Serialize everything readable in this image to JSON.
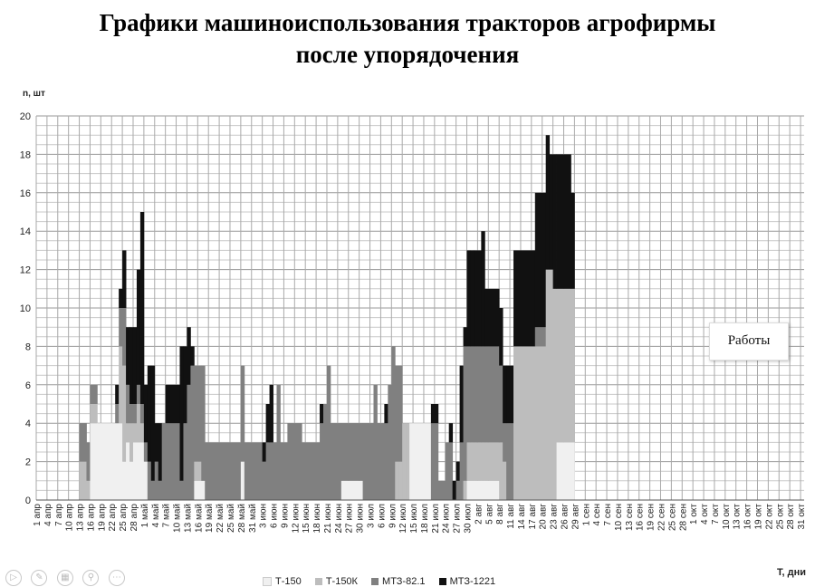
{
  "title_line1": "Графики машиноиспользования тракторов агрофирмы",
  "title_line2": "после упорядочения",
  "annotation": "Работы",
  "toolbar_icons": [
    "play-icon",
    "pen-icon",
    "slides-icon",
    "zoom-icon",
    "more-icon"
  ],
  "chart_data": {
    "type": "bar",
    "stacked": true,
    "ylabel": "n, шт",
    "xlabel": "T, дни",
    "ylim": [
      0,
      20
    ],
    "yticks": [
      0,
      2,
      4,
      6,
      8,
      10,
      12,
      14,
      16,
      18,
      20
    ],
    "grid": true,
    "legend_position": "bottom",
    "tick_labels": [
      "1 апр",
      "4 апр",
      "7 апр",
      "10 апр",
      "13 апр",
      "16 апр",
      "19 апр",
      "22 апр",
      "25 апр",
      "28 апр",
      "1 май",
      "4 май",
      "7 май",
      "10 май",
      "13 май",
      "16 май",
      "19 май",
      "22 май",
      "25 май",
      "28 май",
      "31 май",
      "3 июн",
      "6 июн",
      "9 июн",
      "12 июн",
      "15 июн",
      "18 июн",
      "21 июн",
      "24 июн",
      "27 июн",
      "30 июн",
      "3 июл",
      "6 июл",
      "9 июл",
      "12 июл",
      "15 июл",
      "18 июл",
      "21 июл",
      "24 июл",
      "27 июл",
      "30 июл",
      "2 авг",
      "5 авг",
      "8 авг",
      "11 авг",
      "14 авг",
      "17 авг",
      "20 авг",
      "23 авг",
      "26 авг",
      "29 авг",
      "1 сен",
      "4 сен",
      "7 сен",
      "10 сен",
      "13 сен",
      "16 сен",
      "19 сен",
      "22 сен",
      "25 сен",
      "28 сен",
      "1 окт",
      "4 окт",
      "7 окт",
      "10 окт",
      "13 окт",
      "16 окт",
      "19 окт",
      "22 окт",
      "25 окт",
      "28 окт",
      "31 окт"
    ],
    "categories_note": "daily from 1 апр to 31 окт; segments below give approximate stacked values per day range (start index, end index inclusive, day 0 = 1 апр)",
    "series": [
      {
        "name": "Т-150",
        "color": "#f0f0f0"
      },
      {
        "name": "Т-150К",
        "color": "#bdbdbd"
      },
      {
        "name": "МТЗ-82.1",
        "color": "#808080"
      },
      {
        "name": "МТЗ-1221",
        "color": "#111111"
      }
    ],
    "segments": [
      {
        "d": [
          12,
          13
        ],
        "v": [
          0,
          2,
          2,
          0
        ]
      },
      {
        "d": [
          14,
          14
        ],
        "v": [
          0,
          1,
          2,
          0
        ]
      },
      {
        "d": [
          15,
          16
        ],
        "v": [
          4,
          1,
          1,
          0
        ]
      },
      {
        "d": [
          17,
          20
        ],
        "v": [
          4,
          0,
          0,
          0
        ]
      },
      {
        "d": [
          21,
          21
        ],
        "v": [
          4,
          0,
          0,
          0
        ]
      },
      {
        "d": [
          22,
          22
        ],
        "v": [
          4,
          0,
          1,
          1
        ]
      },
      {
        "d": [
          23,
          23
        ],
        "v": [
          4,
          4,
          2,
          1
        ]
      },
      {
        "d": [
          24,
          24
        ],
        "v": [
          2,
          5,
          3,
          3
        ]
      },
      {
        "d": [
          25,
          25
        ],
        "v": [
          3,
          1,
          2,
          3
        ]
      },
      {
        "d": [
          26,
          26
        ],
        "v": [
          2,
          2,
          1,
          4
        ]
      },
      {
        "d": [
          27,
          27
        ],
        "v": [
          3,
          1,
          1,
          4
        ]
      },
      {
        "d": [
          28,
          28
        ],
        "v": [
          3,
          2,
          1,
          6
        ]
      },
      {
        "d": [
          29,
          29
        ],
        "v": [
          3,
          1,
          1,
          10
        ]
      },
      {
        "d": [
          30,
          30
        ],
        "v": [
          2,
          0,
          1,
          3
        ]
      },
      {
        "d": [
          31,
          31
        ],
        "v": [
          0,
          0,
          2,
          5
        ]
      },
      {
        "d": [
          32,
          32
        ],
        "v": [
          0,
          0,
          1,
          6
        ]
      },
      {
        "d": [
          33,
          33
        ],
        "v": [
          0,
          0,
          2,
          2
        ]
      },
      {
        "d": [
          34,
          34
        ],
        "v": [
          0,
          0,
          1,
          3
        ]
      },
      {
        "d": [
          35,
          35
        ],
        "v": [
          0,
          0,
          4,
          0
        ]
      },
      {
        "d": [
          36,
          39
        ],
        "v": [
          0,
          0,
          4,
          2
        ]
      },
      {
        "d": [
          40,
          40
        ],
        "v": [
          0,
          0,
          1,
          7
        ]
      },
      {
        "d": [
          41,
          41
        ],
        "v": [
          0,
          0,
          4,
          4
        ]
      },
      {
        "d": [
          42,
          42
        ],
        "v": [
          0,
          0,
          6,
          3
        ]
      },
      {
        "d": [
          43,
          43
        ],
        "v": [
          0,
          0,
          7,
          1
        ]
      },
      {
        "d": [
          44,
          44
        ],
        "v": [
          1,
          1,
          5,
          0
        ]
      },
      {
        "d": [
          45,
          45
        ],
        "v": [
          1,
          1,
          5,
          0
        ]
      },
      {
        "d": [
          46,
          46
        ],
        "v": [
          1,
          0,
          6,
          0
        ]
      },
      {
        "d": [
          47,
          47
        ],
        "v": [
          0,
          0,
          3,
          0
        ]
      },
      {
        "d": [
          48,
          56
        ],
        "v": [
          0,
          0,
          3,
          0
        ]
      },
      {
        "d": [
          57,
          57
        ],
        "v": [
          2,
          0,
          5,
          0
        ]
      },
      {
        "d": [
          58,
          58
        ],
        "v": [
          0,
          0,
          3,
          0
        ]
      },
      {
        "d": [
          59,
          62
        ],
        "v": [
          0,
          0,
          3,
          0
        ]
      },
      {
        "d": [
          63,
          63
        ],
        "v": [
          0,
          0,
          2,
          1
        ]
      },
      {
        "d": [
          64,
          64
        ],
        "v": [
          0,
          0,
          3,
          2
        ]
      },
      {
        "d": [
          65,
          65
        ],
        "v": [
          0,
          0,
          3,
          3
        ]
      },
      {
        "d": [
          66,
          66
        ],
        "v": [
          0,
          0,
          3,
          0
        ]
      },
      {
        "d": [
          67,
          67
        ],
        "v": [
          0,
          0,
          6,
          0
        ]
      },
      {
        "d": [
          68,
          68
        ],
        "v": [
          0,
          0,
          3,
          0
        ]
      },
      {
        "d": [
          69,
          69
        ],
        "v": [
          0,
          0,
          3,
          0
        ]
      },
      {
        "d": [
          70,
          73
        ],
        "v": [
          0,
          0,
          4,
          0
        ]
      },
      {
        "d": [
          74,
          78
        ],
        "v": [
          0,
          0,
          3,
          0
        ]
      },
      {
        "d": [
          79,
          79
        ],
        "v": [
          0,
          0,
          4,
          1
        ]
      },
      {
        "d": [
          80,
          80
        ],
        "v": [
          0,
          0,
          5,
          0
        ]
      },
      {
        "d": [
          81,
          81
        ],
        "v": [
          0,
          0,
          7,
          0
        ]
      },
      {
        "d": [
          82,
          84
        ],
        "v": [
          0,
          0,
          4,
          0
        ]
      },
      {
        "d": [
          85,
          90
        ],
        "v": [
          1,
          0,
          3,
          0
        ]
      },
      {
        "d": [
          91,
          93
        ],
        "v": [
          0,
          0,
          4,
          0
        ]
      },
      {
        "d": [
          94,
          94
        ],
        "v": [
          0,
          0,
          6,
          0
        ]
      },
      {
        "d": [
          95,
          96
        ],
        "v": [
          0,
          0,
          4,
          0
        ]
      },
      {
        "d": [
          97,
          97
        ],
        "v": [
          0,
          0,
          4,
          1
        ]
      },
      {
        "d": [
          98,
          98
        ],
        "v": [
          0,
          0,
          6,
          0
        ]
      },
      {
        "d": [
          99,
          99
        ],
        "v": [
          0,
          0,
          8,
          0
        ]
      },
      {
        "d": [
          100,
          100
        ],
        "v": [
          0,
          2,
          5,
          0
        ]
      },
      {
        "d": [
          101,
          101
        ],
        "v": [
          0,
          2,
          5,
          0
        ]
      },
      {
        "d": [
          102,
          102
        ],
        "v": [
          0,
          4,
          0,
          0
        ]
      },
      {
        "d": [
          103,
          103
        ],
        "v": [
          0,
          4,
          0,
          0
        ]
      },
      {
        "d": [
          104,
          109
        ],
        "v": [
          4,
          0,
          0,
          0
        ]
      },
      {
        "d": [
          110,
          111
        ],
        "v": [
          0,
          0,
          4,
          1
        ]
      },
      {
        "d": [
          112,
          112
        ],
        "v": [
          0,
          0,
          1,
          0
        ]
      },
      {
        "d": [
          113,
          113
        ],
        "v": [
          0,
          0,
          1,
          0
        ]
      },
      {
        "d": [
          114,
          114
        ],
        "v": [
          0,
          0,
          3,
          0
        ]
      },
      {
        "d": [
          115,
          115
        ],
        "v": [
          0,
          0,
          3,
          1
        ]
      },
      {
        "d": [
          116,
          116
        ],
        "v": [
          0,
          0,
          0,
          1
        ]
      },
      {
        "d": [
          117,
          117
        ],
        "v": [
          0,
          0,
          1,
          1
        ]
      },
      {
        "d": [
          118,
          118
        ],
        "v": [
          0,
          0,
          3,
          4
        ]
      },
      {
        "d": [
          119,
          119
        ],
        "v": [
          0,
          1,
          7,
          1
        ]
      },
      {
        "d": [
          120,
          120
        ],
        "v": [
          1,
          2,
          5,
          5
        ]
      },
      {
        "d": [
          121,
          121
        ],
        "v": [
          1,
          2,
          5,
          5
        ]
      },
      {
        "d": [
          122,
          123
        ],
        "v": [
          1,
          2,
          5,
          5
        ]
      },
      {
        "d": [
          124,
          124
        ],
        "v": [
          1,
          2,
          5,
          6
        ]
      },
      {
        "d": [
          125,
          128
        ],
        "v": [
          1,
          2,
          5,
          3
        ]
      },
      {
        "d": [
          129,
          129
        ],
        "v": [
          0,
          3,
          4,
          3
        ]
      },
      {
        "d": [
          130,
          130
        ],
        "v": [
          0,
          2,
          2,
          3
        ]
      },
      {
        "d": [
          131,
          132
        ],
        "v": [
          0,
          0,
          4,
          3
        ]
      },
      {
        "d": [
          133,
          138
        ],
        "v": [
          0,
          8,
          0,
          5
        ]
      },
      {
        "d": [
          139,
          141
        ],
        "v": [
          0,
          8,
          1,
          7
        ]
      },
      {
        "d": [
          142,
          142
        ],
        "v": [
          0,
          12,
          0,
          7
        ]
      },
      {
        "d": [
          143,
          143
        ],
        "v": [
          0,
          12,
          0,
          6
        ]
      },
      {
        "d": [
          144,
          144
        ],
        "v": [
          0,
          11,
          0,
          7
        ]
      },
      {
        "d": [
          145,
          148
        ],
        "v": [
          3,
          8,
          0,
          7
        ]
      },
      {
        "d": [
          149,
          149
        ],
        "v": [
          3,
          8,
          0,
          5
        ]
      }
    ]
  },
  "legend_items": [
    {
      "label": "Т-150",
      "color": "#f0f0f0"
    },
    {
      "label": "Т-150К",
      "color": "#bdbdbd"
    },
    {
      "label": "МТЗ-82.1",
      "color": "#808080"
    },
    {
      "label": "МТЗ-1221",
      "color": "#111111"
    }
  ]
}
